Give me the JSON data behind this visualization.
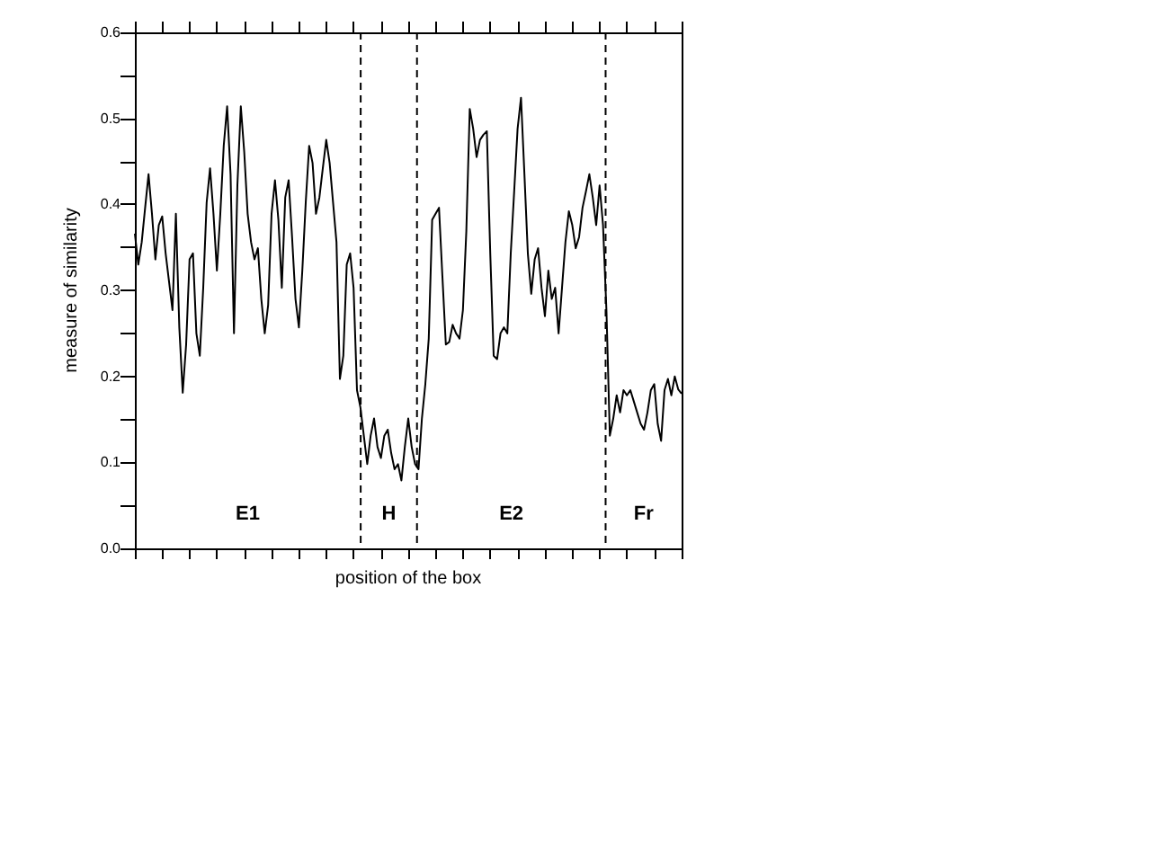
{
  "chart_data": {
    "type": "line",
    "xlabel": "position of the box",
    "ylabel": "measure of similarity",
    "tick_labels": "y",
    "categories": [
      null,
      null,
      null,
      null,
      null,
      null,
      null,
      null,
      null,
      null,
      null,
      null,
      null,
      null,
      null,
      null,
      null,
      null,
      null,
      null,
      null,
      null,
      null,
      null,
      null,
      null,
      null,
      null,
      null,
      null,
      null,
      null,
      null,
      null,
      null,
      null,
      null,
      null,
      null,
      null,
      null,
      null,
      null,
      null,
      null,
      null,
      null,
      null,
      null,
      null,
      null,
      null,
      null,
      null,
      null,
      null,
      null,
      null,
      null,
      null,
      null,
      null,
      null,
      null,
      null,
      null,
      null,
      null,
      null,
      null,
      null,
      null,
      null,
      null,
      null,
      null,
      null,
      null,
      null,
      null,
      null,
      null,
      null,
      null,
      null,
      null,
      null,
      null,
      null,
      null,
      null,
      null,
      null,
      null,
      null,
      null,
      null,
      null,
      null,
      null,
      null,
      null,
      null,
      null,
      null,
      null,
      null,
      null,
      null,
      null,
      null,
      null,
      null,
      null,
      null,
      null,
      null,
      null,
      null,
      null,
      null,
      null,
      null,
      null,
      null,
      null,
      null,
      null,
      null,
      null,
      null,
      null,
      null,
      null,
      null,
      null,
      null,
      null,
      null,
      null,
      null,
      null,
      null,
      null,
      null,
      null,
      null,
      null,
      null,
      null,
      null,
      null,
      null,
      null,
      null,
      null,
      null,
      null,
      null,
      null,
      null
    ],
    "ylim": [
      0,
      0.6
    ],
    "yticks": [
      {
        "value": 0,
        "label": "0.0"
      },
      {
        "value": 0.05,
        "label": null
      },
      {
        "value": 0.1,
        "label": "0.1"
      },
      {
        "value": 0.15,
        "label": null
      },
      {
        "value": 0.2,
        "label": "0.2"
      },
      {
        "value": 0.25,
        "label": null
      },
      {
        "value": 0.3,
        "label": "0.3"
      },
      {
        "value": 0.35,
        "label": null
      },
      {
        "value": 0.4,
        "label": "0.4"
      },
      {
        "value": 0.45,
        "label": null
      },
      {
        "value": 0.5,
        "label": "0.5"
      },
      {
        "value": 0.55,
        "label": null
      },
      {
        "value": 0.6,
        "label": "0.6"
      }
    ],
    "series": [
      {
        "color": "#000000",
        "values": [
          0.366,
          0.33,
          0.356,
          0.396,
          0.435,
          0.389,
          0.336,
          0.376,
          0.386,
          0.343,
          0.31,
          0.277,
          0.389,
          0.257,
          0.181,
          0.237,
          0.336,
          0.343,
          0.25,
          0.224,
          0.303,
          0.402,
          0.442,
          0.389,
          0.323,
          0.389,
          0.468,
          0.514,
          0.435,
          0.25,
          0.422,
          0.514,
          0.461,
          0.389,
          0.356,
          0.336,
          0.349,
          0.29,
          0.25,
          0.283,
          0.389,
          0.428,
          0.382,
          0.303,
          0.408,
          0.428,
          0.362,
          0.29,
          0.257,
          0.323,
          0.402,
          0.468,
          0.448,
          0.389,
          0.408,
          0.442,
          0.475,
          0.448,
          0.402,
          0.356,
          0.197,
          0.224,
          0.33,
          0.343,
          0.303,
          0.184,
          0.164,
          0.131,
          0.098,
          0.131,
          0.151,
          0.118,
          0.105,
          0.131,
          0.138,
          0.111,
          0.092,
          0.098,
          0.079,
          0.118,
          0.151,
          0.118,
          0.098,
          0.092,
          0.151,
          0.191,
          0.244,
          0.382,
          0.389,
          0.396,
          0.316,
          0.237,
          0.24,
          0.26,
          0.25,
          0.244,
          0.277,
          0.369,
          0.511,
          0.488,
          0.455,
          0.475,
          0.481,
          0.485,
          0.343,
          0.224,
          0.22,
          0.25,
          0.257,
          0.25,
          0.343,
          0.415,
          0.488,
          0.524,
          0.435,
          0.343,
          0.296,
          0.336,
          0.349,
          0.303,
          0.27,
          0.323,
          0.29,
          0.303,
          0.25,
          0.303,
          0.356,
          0.392,
          0.376,
          0.349,
          0.362,
          0.396,
          0.415,
          0.435,
          0.408,
          0.376,
          0.422,
          0.376,
          0.277,
          0.131,
          0.151,
          0.178,
          0.158,
          0.184,
          0.178,
          0.184,
          0.171,
          0.158,
          0.145,
          0.138,
          0.158,
          0.184,
          0.191,
          0.145,
          0.125,
          0.184,
          0.197,
          0.178,
          0.2,
          0.185,
          0.18
        ]
      }
    ],
    "annotations": [
      "E1",
      "H",
      "E2",
      "Fr"
    ]
  }
}
